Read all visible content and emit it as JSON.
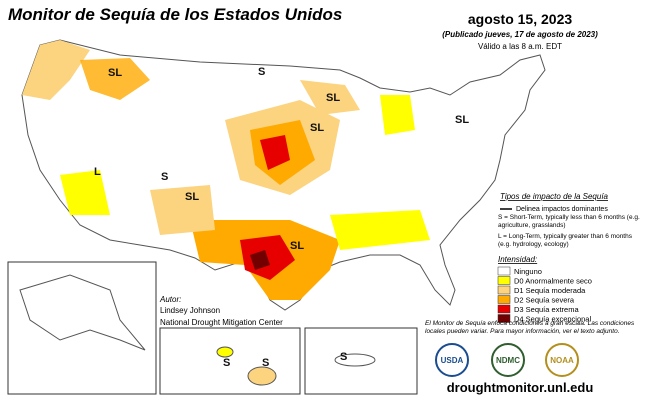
{
  "header": {
    "title": "Monitor de Sequía de los Estados Unidos",
    "date": "agosto 15, 2023",
    "published": "(Publicado jueves, 17 de agosto de 2023)",
    "valid": "Válido a las 8 a.m. EDT"
  },
  "impact_legend": {
    "title": "Tipos de impacto de la Sequía",
    "delineates": "Delinea impactos dominantes",
    "short_term": "S = Short-Term, typically less than 6 months (e.g. agriculture, grasslands)",
    "long_term": "L = Long-Term, typically greater than 6 months (e.g. hydrology, ecology)"
  },
  "intensity_legend": {
    "title": "Intensidad:",
    "levels": [
      {
        "label": "Ninguno",
        "color": "#ffffff"
      },
      {
        "label": "D0 Anormalmente seco",
        "color": "#ffff00"
      },
      {
        "label": "D1 Sequía moderada",
        "color": "#fcd37f"
      },
      {
        "label": "D2 Sequía severa",
        "color": "#ffaa00"
      },
      {
        "label": "D3 Sequía extrema",
        "color": "#e60000"
      },
      {
        "label": "D4 Sequía excepcional",
        "color": "#730000"
      }
    ]
  },
  "author": {
    "heading": "Autor:",
    "name": "Lindsey Johnson",
    "organization": "National Drought Mitigation Center"
  },
  "note": "El Monitor de Sequía enfoca condiciones a gran escala. Las condiciones locales pueden variar. Para mayor información, ver el texto adjunto.",
  "logos": [
    "USDA",
    "NDMC",
    "NOAA"
  ],
  "url": "droughtmonitor.unl.edu",
  "map_labels": [
    "SL",
    "S",
    "SL",
    "SL",
    "SL",
    "L",
    "S",
    "SL",
    "SL",
    "S",
    "S",
    "S"
  ]
}
